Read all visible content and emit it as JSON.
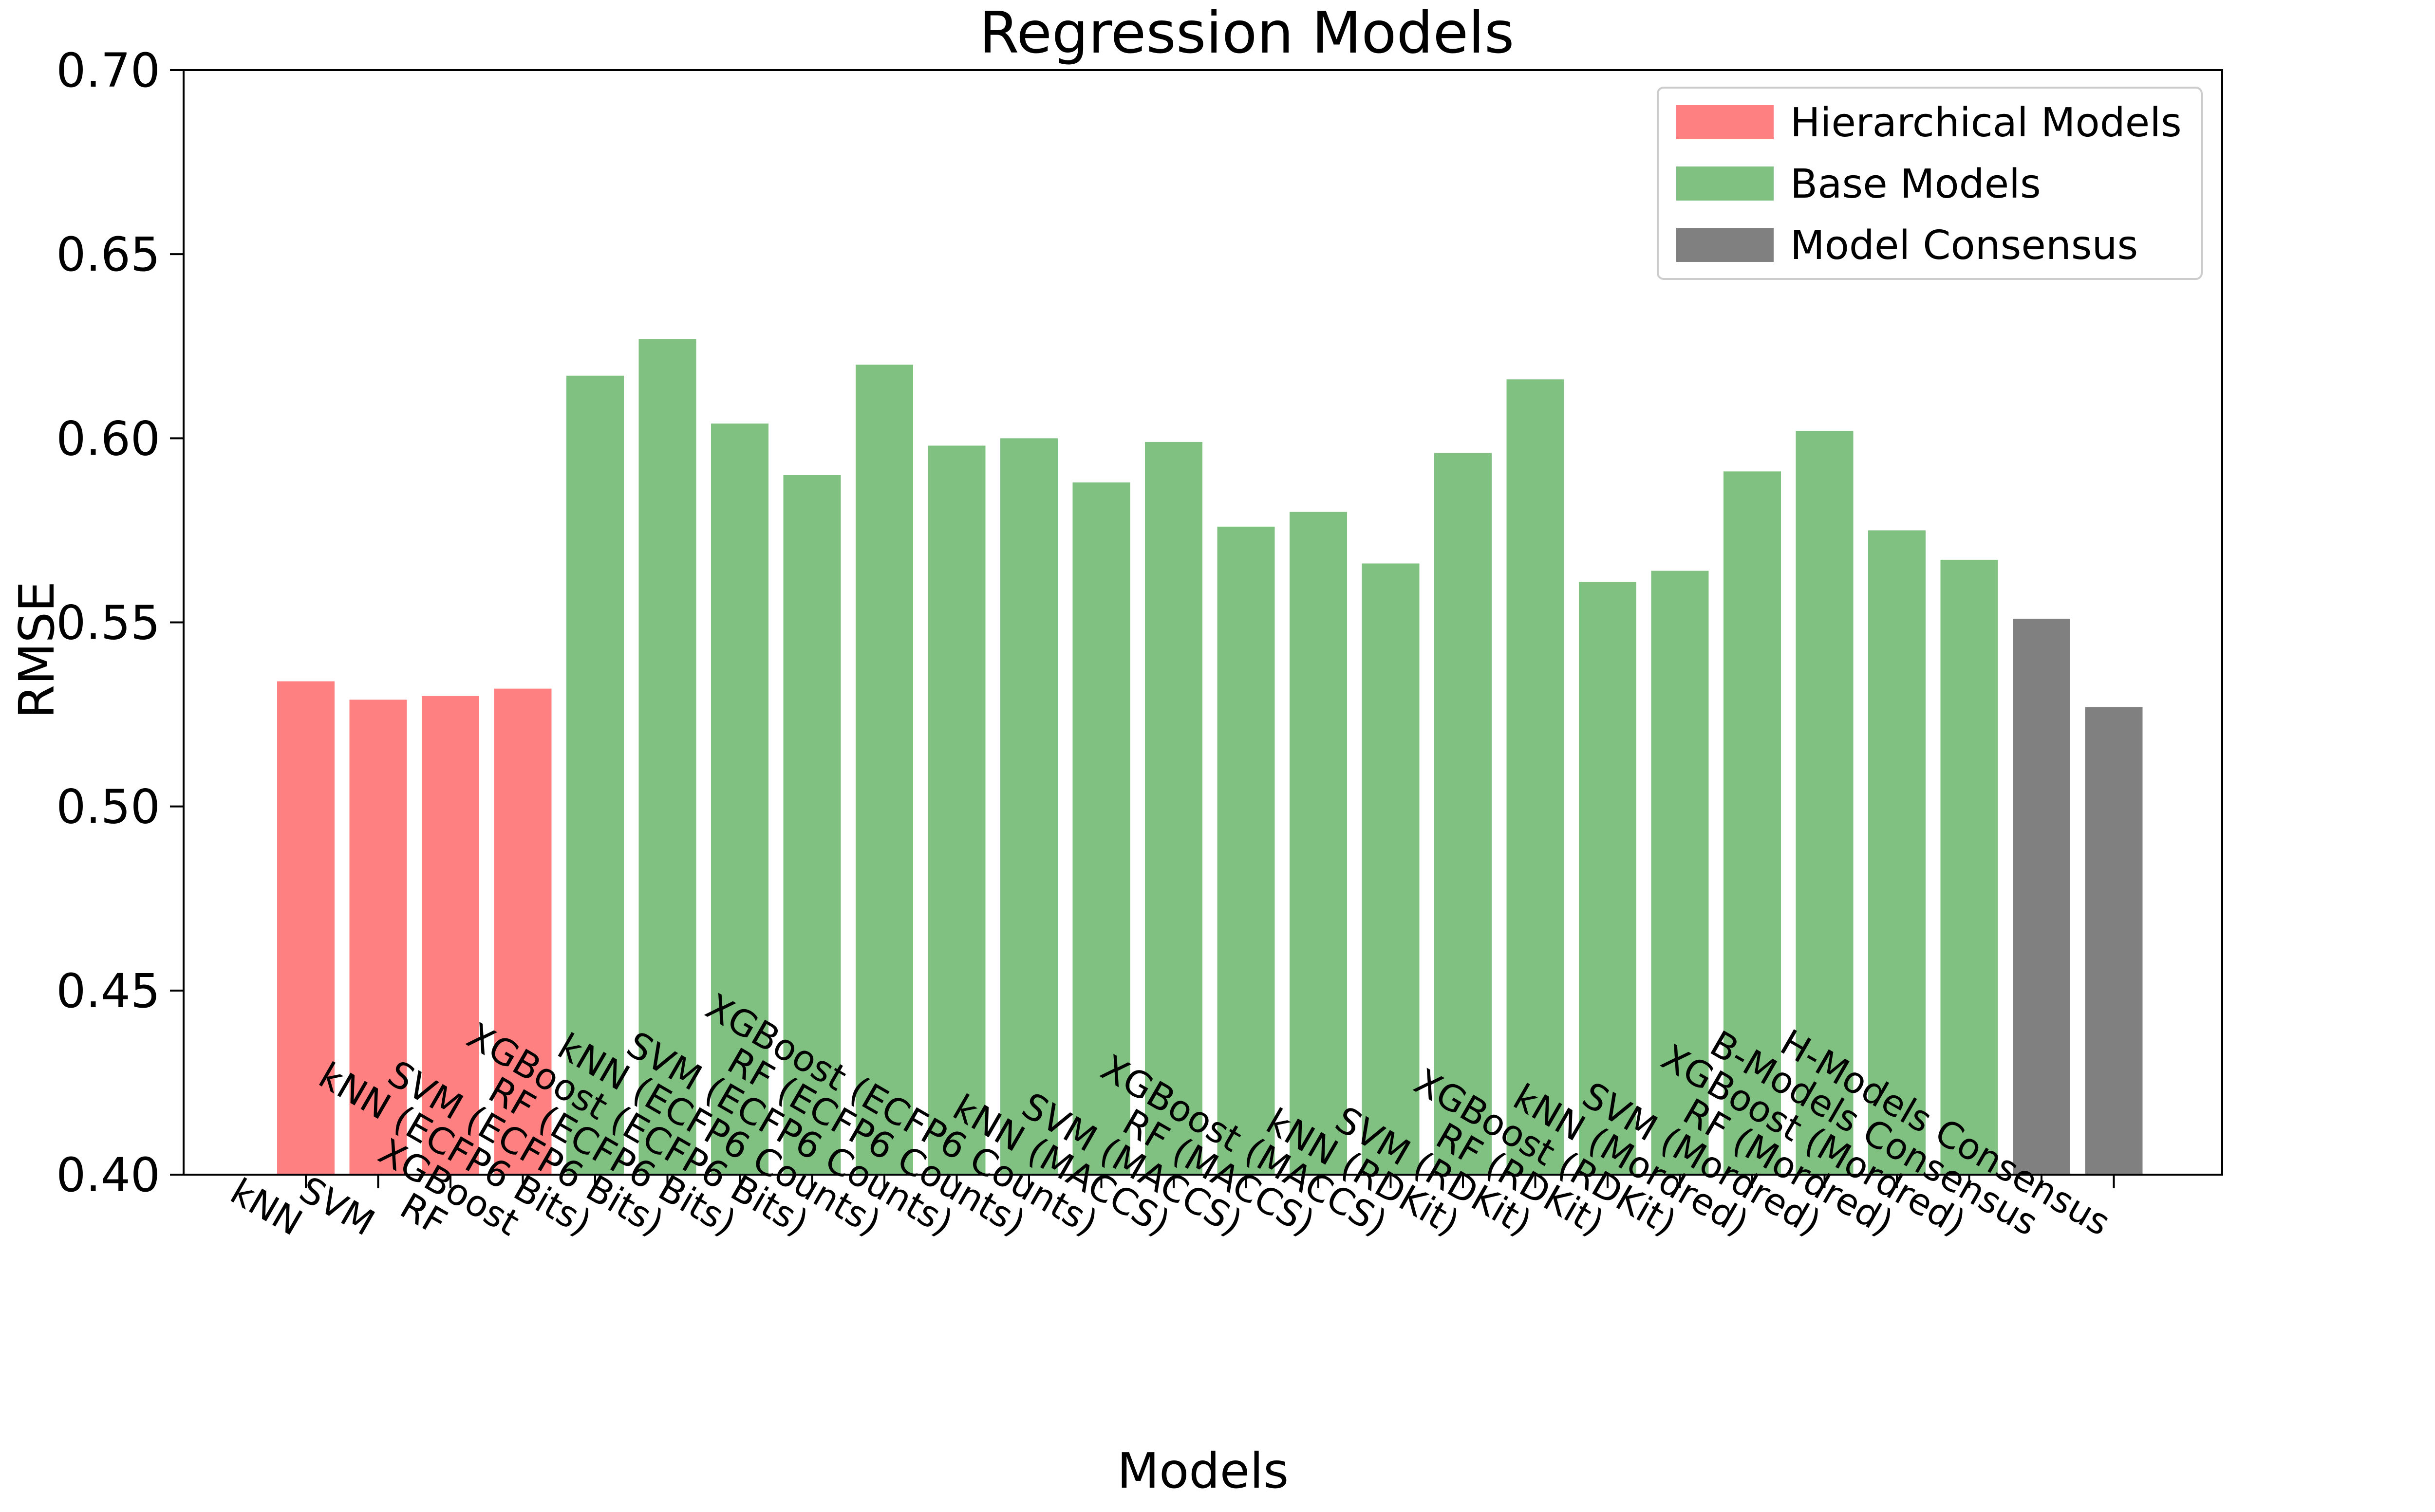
{
  "chart_data": {
    "type": "bar",
    "title": "Regression Models",
    "xlabel": "Models",
    "ylabel": "RMSE",
    "ylim": [
      0.4,
      0.7
    ],
    "yticks": [
      "0.40",
      "0.45",
      "0.50",
      "0.55",
      "0.60",
      "0.65",
      "0.70"
    ],
    "grid": false,
    "legend_position": "top-right",
    "categories": [
      "kNN",
      "SVM",
      "RF",
      "XGBoost",
      "kNN (ECFP6 Bits)",
      "SVM (ECFP6 Bits)",
      "RF (ECFP6 Bits)",
      "XGBoost (ECFP6 Bits)",
      "kNN (ECFP6 Counts)",
      "SVM (ECFP6 Counts)",
      "RF (ECFP6 Counts)",
      "XGBoost (ECFP6 Counts)",
      "kNN (MACCS)",
      "SVM (MACCS)",
      "RF (MACCS)",
      "XGBoost (MACCS)",
      "kNN (RDKit)",
      "SVM (RDKit)",
      "RF (RDKit)",
      "XGBoost (RDKit)",
      "kNN (Mordred)",
      "SVM (Mordred)",
      "RF (Mordred)",
      "XGBoost (Mordred)",
      "B-Models Consensus",
      "H-Models Consensus"
    ],
    "values": [
      0.534,
      0.529,
      0.53,
      0.532,
      0.617,
      0.627,
      0.604,
      0.59,
      0.62,
      0.598,
      0.6,
      0.588,
      0.599,
      0.576,
      0.58,
      0.566,
      0.596,
      0.616,
      0.561,
      0.564,
      0.591,
      0.602,
      0.575,
      0.567,
      0.551,
      0.527
    ],
    "groups": [
      0,
      0,
      0,
      0,
      1,
      1,
      1,
      1,
      1,
      1,
      1,
      1,
      1,
      1,
      1,
      1,
      1,
      1,
      1,
      1,
      1,
      1,
      1,
      1,
      2,
      2
    ],
    "series": [
      {
        "name": "Hierarchical Models",
        "color": "#ff8080"
      },
      {
        "name": "Base Models",
        "color": "#80c080"
      },
      {
        "name": "Model Consensus",
        "color": "#808080"
      }
    ]
  }
}
